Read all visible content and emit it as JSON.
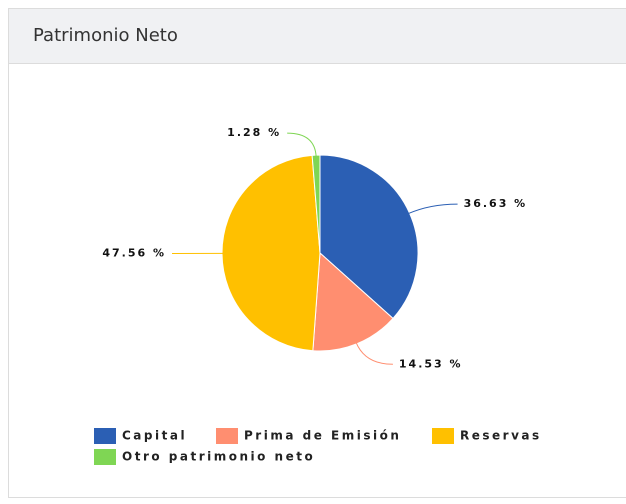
{
  "chart_data": {
    "type": "pie",
    "title": "Patrimonio Neto",
    "categories": [
      "Capital",
      "Prima de Emisión",
      "Reservas",
      "Otro patrimonio neto"
    ],
    "values": [
      36.63,
      14.53,
      47.56,
      1.28
    ],
    "value_labels": [
      "36.63 %",
      "14.53 %",
      "47.56 %",
      "1.28 %"
    ],
    "colors": [
      "#2b5fb4",
      "#ff8e70",
      "#ffc000",
      "#7fd654"
    ]
  }
}
